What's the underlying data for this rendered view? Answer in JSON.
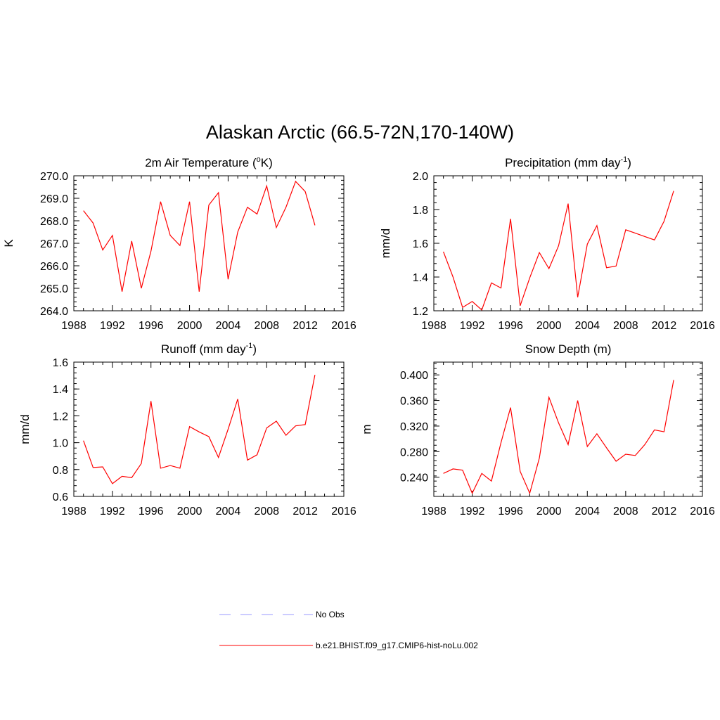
{
  "figure": {
    "title": "Alaskan Arctic (66.5-72N,170-140W)"
  },
  "chart_data": [
    {
      "type": "line",
      "title": {
        "main": "2m Air Temperature (",
        "sup": "o",
        "tail": "K)"
      },
      "ylabel": "K",
      "xlim": [
        1988,
        2016
      ],
      "ylim": [
        264.0,
        270.0
      ],
      "xticks": [
        1988,
        1992,
        1996,
        2000,
        2004,
        2008,
        2012,
        2016
      ],
      "yticks": [
        "264.0",
        "265.0",
        "266.0",
        "267.0",
        "268.0",
        "269.0",
        "270.0"
      ],
      "ytick_values": [
        264,
        265,
        266,
        267,
        268,
        269,
        270
      ],
      "yminor": 0.2,
      "series": [
        {
          "name": "b.e21.BHIST.f09_g17.CMIP6-hist-noLu.002",
          "color": "#ff0000",
          "x": [
            1989,
            1990,
            1991,
            1992,
            1993,
            1994,
            1995,
            1996,
            1997,
            1998,
            1999,
            2000,
            2001,
            2002,
            2003,
            2004,
            2005,
            2006,
            2007,
            2008,
            2009,
            2010,
            2011,
            2012,
            2013
          ],
          "values": [
            268.45,
            267.9,
            266.7,
            267.35,
            264.85,
            267.1,
            265.0,
            266.65,
            268.85,
            267.35,
            266.9,
            268.85,
            264.85,
            268.7,
            269.25,
            265.4,
            267.5,
            268.6,
            268.3,
            269.55,
            267.7,
            268.6,
            269.75,
            269.3,
            267.8
          ]
        }
      ]
    },
    {
      "type": "line",
      "title": {
        "main": "Precipitation (mm day",
        "sup": "-1",
        "tail": ")"
      },
      "ylabel": "mm/d",
      "xlim": [
        1988,
        2016
      ],
      "ylim": [
        1.2,
        2.0
      ],
      "xticks": [
        1988,
        1992,
        1996,
        2000,
        2004,
        2008,
        2012,
        2016
      ],
      "yticks": [
        "1.2",
        "1.4",
        "1.6",
        "1.8",
        "2.0"
      ],
      "ytick_values": [
        1.2,
        1.4,
        1.6,
        1.8,
        2.0
      ],
      "yminor": 0.04,
      "series": [
        {
          "name": "b.e21.BHIST.f09_g17.CMIP6-hist-noLu.002",
          "color": "#ff0000",
          "x": [
            1989,
            1990,
            1991,
            1992,
            1993,
            1994,
            1995,
            1996,
            1997,
            1998,
            1999,
            2000,
            2001,
            2002,
            2003,
            2004,
            2005,
            2006,
            2007,
            2008,
            2009,
            2010,
            2011,
            2012,
            2013
          ],
          "values": [
            1.55,
            1.4,
            1.22,
            1.255,
            1.205,
            1.365,
            1.335,
            1.745,
            1.23,
            1.395,
            1.545,
            1.45,
            1.585,
            1.835,
            1.28,
            1.595,
            1.705,
            1.455,
            1.465,
            1.68,
            1.66,
            1.64,
            1.62,
            1.73,
            1.91
          ]
        }
      ]
    },
    {
      "type": "line",
      "title": {
        "main": "Runoff (mm day",
        "sup": "-1",
        "tail": ")"
      },
      "ylabel": "mm/d",
      "xlim": [
        1988,
        2016
      ],
      "ylim": [
        0.6,
        1.6
      ],
      "xticks": [
        1988,
        1992,
        1996,
        2000,
        2004,
        2008,
        2012,
        2016
      ],
      "yticks": [
        "0.6",
        "0.8",
        "1.0",
        "1.2",
        "1.4",
        "1.6"
      ],
      "ytick_values": [
        0.6,
        0.8,
        1.0,
        1.2,
        1.4,
        1.6
      ],
      "yminor": 0.04,
      "series": [
        {
          "name": "b.e21.BHIST.f09_g17.CMIP6-hist-noLu.002",
          "color": "#ff0000",
          "x": [
            1989,
            1990,
            1991,
            1992,
            1993,
            1994,
            1995,
            1996,
            1997,
            1998,
            1999,
            2000,
            2001,
            2002,
            2003,
            2004,
            2005,
            2006,
            2007,
            2008,
            2009,
            2010,
            2011,
            2012,
            2013
          ],
          "values": [
            1.015,
            0.815,
            0.82,
            0.695,
            0.75,
            0.74,
            0.845,
            1.31,
            0.81,
            0.83,
            0.81,
            1.12,
            1.08,
            1.045,
            0.89,
            1.1,
            1.325,
            0.87,
            0.91,
            1.11,
            1.16,
            1.055,
            1.125,
            1.135,
            1.505
          ]
        }
      ]
    },
    {
      "type": "line",
      "title": {
        "main": "Snow Depth (m)",
        "sup": "",
        "tail": ""
      },
      "ylabel": "m",
      "xlim": [
        1988,
        2016
      ],
      "ylim": [
        0.21,
        0.42
      ],
      "xticks": [
        1988,
        1992,
        1996,
        2000,
        2004,
        2008,
        2012,
        2016
      ],
      "yticks": [
        "0.240",
        "0.280",
        "0.320",
        "0.360",
        "0.400"
      ],
      "ytick_values": [
        0.24,
        0.28,
        0.32,
        0.36,
        0.4
      ],
      "yminor": 0.008,
      "series": [
        {
          "name": "b.e21.BHIST.f09_g17.CMIP6-hist-noLu.002",
          "color": "#ff0000",
          "x": [
            1989,
            1990,
            1991,
            1992,
            1993,
            1994,
            1995,
            1996,
            1997,
            1998,
            1999,
            2000,
            2001,
            2002,
            2003,
            2004,
            2005,
            2006,
            2007,
            2008,
            2009,
            2010,
            2011,
            2012,
            2013
          ],
          "values": [
            0.246,
            0.253,
            0.251,
            0.215,
            0.246,
            0.234,
            0.294,
            0.349,
            0.249,
            0.215,
            0.27,
            0.365,
            0.325,
            0.291,
            0.36,
            0.288,
            0.308,
            0.286,
            0.265,
            0.276,
            0.274,
            0.291,
            0.314,
            0.311,
            0.392
          ]
        }
      ]
    }
  ],
  "legend": {
    "placement": "bottom-center",
    "entries": [
      {
        "label": "No Obs",
        "color": "#9999ff",
        "style": "dashed"
      },
      {
        "label": "b.e21.BHIST.f09_g17.CMIP6-hist-noLu.002",
        "color": "#ff0000",
        "style": "solid"
      }
    ]
  }
}
